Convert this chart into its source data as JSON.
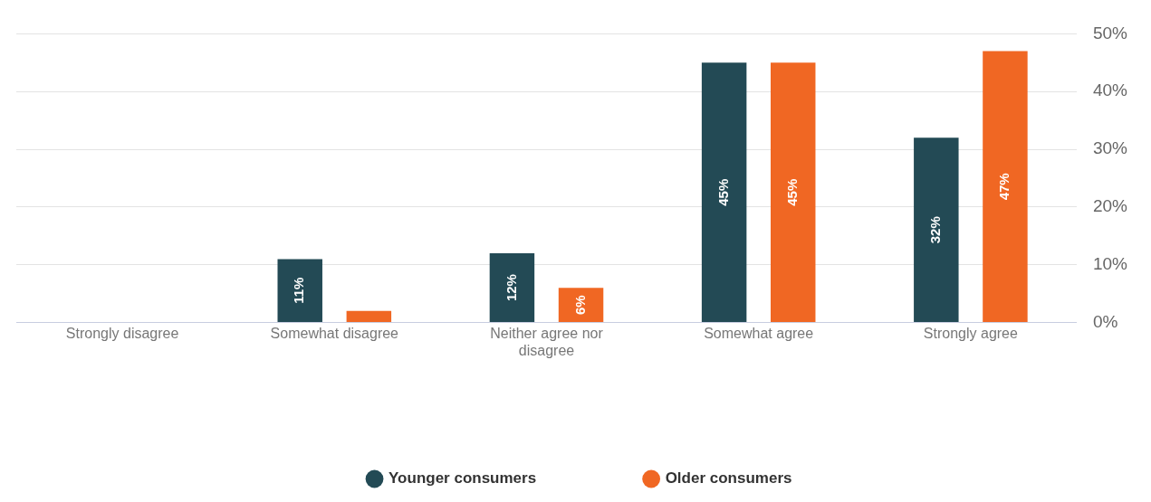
{
  "chart_data": {
    "type": "bar",
    "categories": [
      "Strongly disagree",
      "Somewhat disagree",
      "Neither agree nor disagree",
      "Somewhat agree",
      "Strongly agree"
    ],
    "series": [
      {
        "name": "Younger consumers",
        "color": "#234a55",
        "values": [
          0,
          11,
          12,
          45,
          32
        ],
        "value_labels": [
          null,
          "11%",
          "12%",
          "45%",
          "32%"
        ]
      },
      {
        "name": "Older consumers",
        "color": "#f06723",
        "values": [
          0,
          2,
          6,
          45,
          47
        ],
        "value_labels": [
          null,
          null,
          "6%",
          "45%",
          "47%"
        ]
      }
    ],
    "ylim": [
      0,
      50
    ],
    "yticks": [
      {
        "value": 0,
        "label": "0%"
      },
      {
        "value": 10,
        "label": "10%"
      },
      {
        "value": 20,
        "label": "20%"
      },
      {
        "value": 30,
        "label": "30%"
      },
      {
        "value": 40,
        "label": "40%"
      },
      {
        "value": 50,
        "label": "50%"
      }
    ],
    "grid": "y",
    "legend": "bottom"
  }
}
